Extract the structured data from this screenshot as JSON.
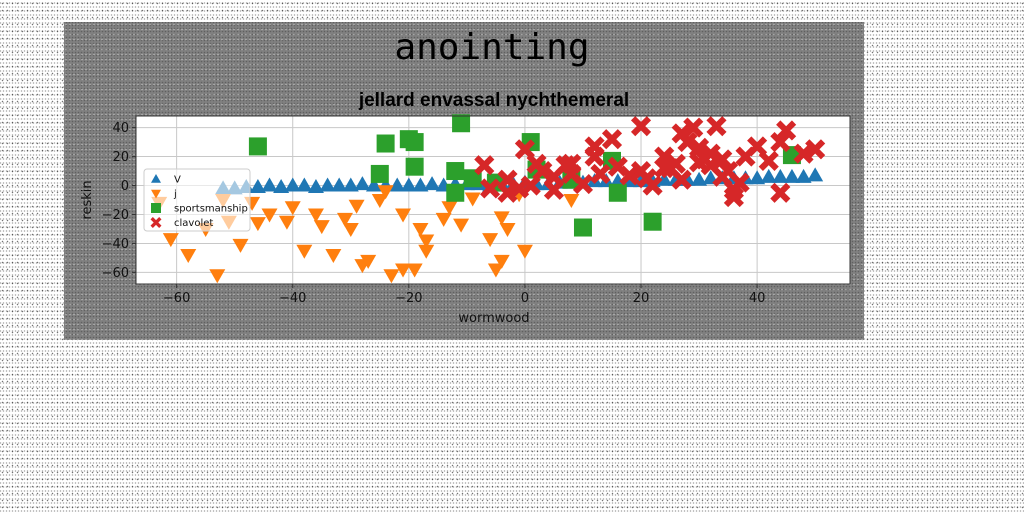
{
  "figure": {
    "suptitle": "anointing"
  },
  "chart_data": {
    "type": "scatter",
    "title": "jellard envassal nychthemeral",
    "xlabel": "wormwood",
    "ylabel": "reskin",
    "xlim": [
      -67,
      56
    ],
    "ylim": [
      -68,
      48
    ],
    "xticks": [
      -60,
      -40,
      -20,
      0,
      20,
      40
    ],
    "yticks": [
      -60,
      -40,
      -20,
      0,
      20,
      40
    ],
    "grid": true,
    "legend_position": "center-left",
    "series": [
      {
        "name": "V",
        "marker": "triangle-up",
        "color": "#1f77b4",
        "points": [
          [
            -52,
            -2
          ],
          [
            -50,
            -2
          ],
          [
            -48,
            -1
          ],
          [
            -46,
            -1
          ],
          [
            -44,
            0
          ],
          [
            -42,
            -1
          ],
          [
            -40,
            0
          ],
          [
            -38,
            0
          ],
          [
            -36,
            -1
          ],
          [
            -34,
            0
          ],
          [
            -32,
            0
          ],
          [
            -30,
            0
          ],
          [
            -28,
            1
          ],
          [
            -26,
            0
          ],
          [
            -24,
            0
          ],
          [
            -22,
            0
          ],
          [
            -20,
            0
          ],
          [
            -18,
            0
          ],
          [
            -16,
            1
          ],
          [
            -14,
            0
          ],
          [
            -12,
            1
          ],
          [
            -10,
            1
          ],
          [
            -8,
            1
          ],
          [
            -6,
            0
          ],
          [
            -4,
            1
          ],
          [
            -2,
            1
          ],
          [
            0,
            2
          ],
          [
            2,
            1
          ],
          [
            4,
            1
          ],
          [
            6,
            2
          ],
          [
            8,
            2
          ],
          [
            10,
            2
          ],
          [
            12,
            3
          ],
          [
            14,
            3
          ],
          [
            16,
            3
          ],
          [
            18,
            3
          ],
          [
            20,
            3
          ],
          [
            22,
            3
          ],
          [
            24,
            4
          ],
          [
            26,
            4
          ],
          [
            28,
            4
          ],
          [
            30,
            4
          ],
          [
            32,
            5
          ],
          [
            34,
            5
          ],
          [
            36,
            5
          ],
          [
            38,
            5
          ],
          [
            40,
            5
          ],
          [
            42,
            6
          ],
          [
            44,
            6
          ],
          [
            46,
            6
          ],
          [
            48,
            6
          ],
          [
            50,
            7
          ]
        ]
      },
      {
        "name": "j",
        "marker": "triangle-down",
        "color": "#ff7f0e",
        "points": [
          [
            -63,
            -12
          ],
          [
            -61,
            -37
          ],
          [
            -58,
            -48
          ],
          [
            -55,
            -30
          ],
          [
            -53,
            -62
          ],
          [
            -52,
            -10
          ],
          [
            -51,
            -25
          ],
          [
            -49,
            -41
          ],
          [
            -47,
            -12
          ],
          [
            -46,
            -26
          ],
          [
            -44,
            -20
          ],
          [
            -41,
            -25
          ],
          [
            -40,
            -15
          ],
          [
            -38,
            -45
          ],
          [
            -36,
            -20
          ],
          [
            -35,
            -28
          ],
          [
            -33,
            -48
          ],
          [
            -31,
            -23
          ],
          [
            -30,
            -30
          ],
          [
            -29,
            -14
          ],
          [
            -28,
            -55
          ],
          [
            -27,
            -52
          ],
          [
            -25,
            -10
          ],
          [
            -24,
            -4
          ],
          [
            -23,
            -62
          ],
          [
            -21,
            -58
          ],
          [
            -21,
            -20
          ],
          [
            -19,
            -58
          ],
          [
            -18,
            -30
          ],
          [
            -17,
            -45
          ],
          [
            -17,
            -38
          ],
          [
            -14,
            -23
          ],
          [
            -13,
            -15
          ],
          [
            -11,
            -27
          ],
          [
            -9,
            -9
          ],
          [
            -6,
            -37
          ],
          [
            -5,
            -58
          ],
          [
            -4,
            -52
          ],
          [
            -4,
            -22
          ],
          [
            -3,
            -30
          ],
          [
            0,
            -45
          ],
          [
            -1,
            -6
          ],
          [
            8,
            -10
          ]
        ]
      },
      {
        "name": "sportsmanship",
        "marker": "square",
        "color": "#2ca02c",
        "points": [
          [
            -46,
            27
          ],
          [
            -25,
            8
          ],
          [
            -24,
            29
          ],
          [
            -20,
            32
          ],
          [
            -19,
            30
          ],
          [
            -19,
            13
          ],
          [
            -12,
            10
          ],
          [
            -12,
            -5
          ],
          [
            -11,
            43
          ],
          [
            -9,
            5
          ],
          [
            -5,
            2
          ],
          [
            2,
            11
          ],
          [
            1,
            30
          ],
          [
            8,
            4
          ],
          [
            10,
            -29
          ],
          [
            15,
            17
          ],
          [
            16,
            -5
          ],
          [
            22,
            -25
          ],
          [
            46,
            21
          ]
        ]
      },
      {
        "name": "clavolet",
        "marker": "x",
        "color": "#d62728",
        "points": [
          [
            -7,
            14
          ],
          [
            -6,
            -2
          ],
          [
            -3,
            4
          ],
          [
            -1,
            -2
          ],
          [
            1,
            0
          ],
          [
            3,
            10
          ],
          [
            5,
            6
          ],
          [
            7,
            14
          ],
          [
            8,
            15
          ],
          [
            10,
            1
          ],
          [
            12,
            20
          ],
          [
            13,
            8
          ],
          [
            16,
            13
          ],
          [
            18,
            7
          ],
          [
            20,
            10
          ],
          [
            21,
            5
          ],
          [
            22,
            0
          ],
          [
            24,
            20
          ],
          [
            25,
            12
          ],
          [
            26,
            15
          ],
          [
            27,
            36
          ],
          [
            28,
            30
          ],
          [
            29,
            40
          ],
          [
            30,
            26
          ],
          [
            31,
            18
          ],
          [
            32,
            22
          ],
          [
            33,
            41
          ],
          [
            34,
            18
          ],
          [
            35,
            10
          ],
          [
            36,
            -8
          ],
          [
            37,
            2
          ],
          [
            38,
            20
          ],
          [
            40,
            27
          ],
          [
            42,
            17
          ],
          [
            44,
            30
          ],
          [
            45,
            38
          ],
          [
            48,
            22
          ],
          [
            50,
            25
          ],
          [
            34,
            6
          ],
          [
            32,
            14
          ],
          [
            30,
            16
          ],
          [
            27,
            4
          ],
          [
            24,
            12
          ],
          [
            20,
            41
          ],
          [
            15,
            32
          ],
          [
            12,
            27
          ],
          [
            8,
            8
          ],
          [
            5,
            -3
          ],
          [
            2,
            15
          ],
          [
            0,
            25
          ],
          [
            -3,
            -5
          ],
          [
            36,
            -3
          ],
          [
            44,
            -5
          ]
        ]
      }
    ]
  }
}
